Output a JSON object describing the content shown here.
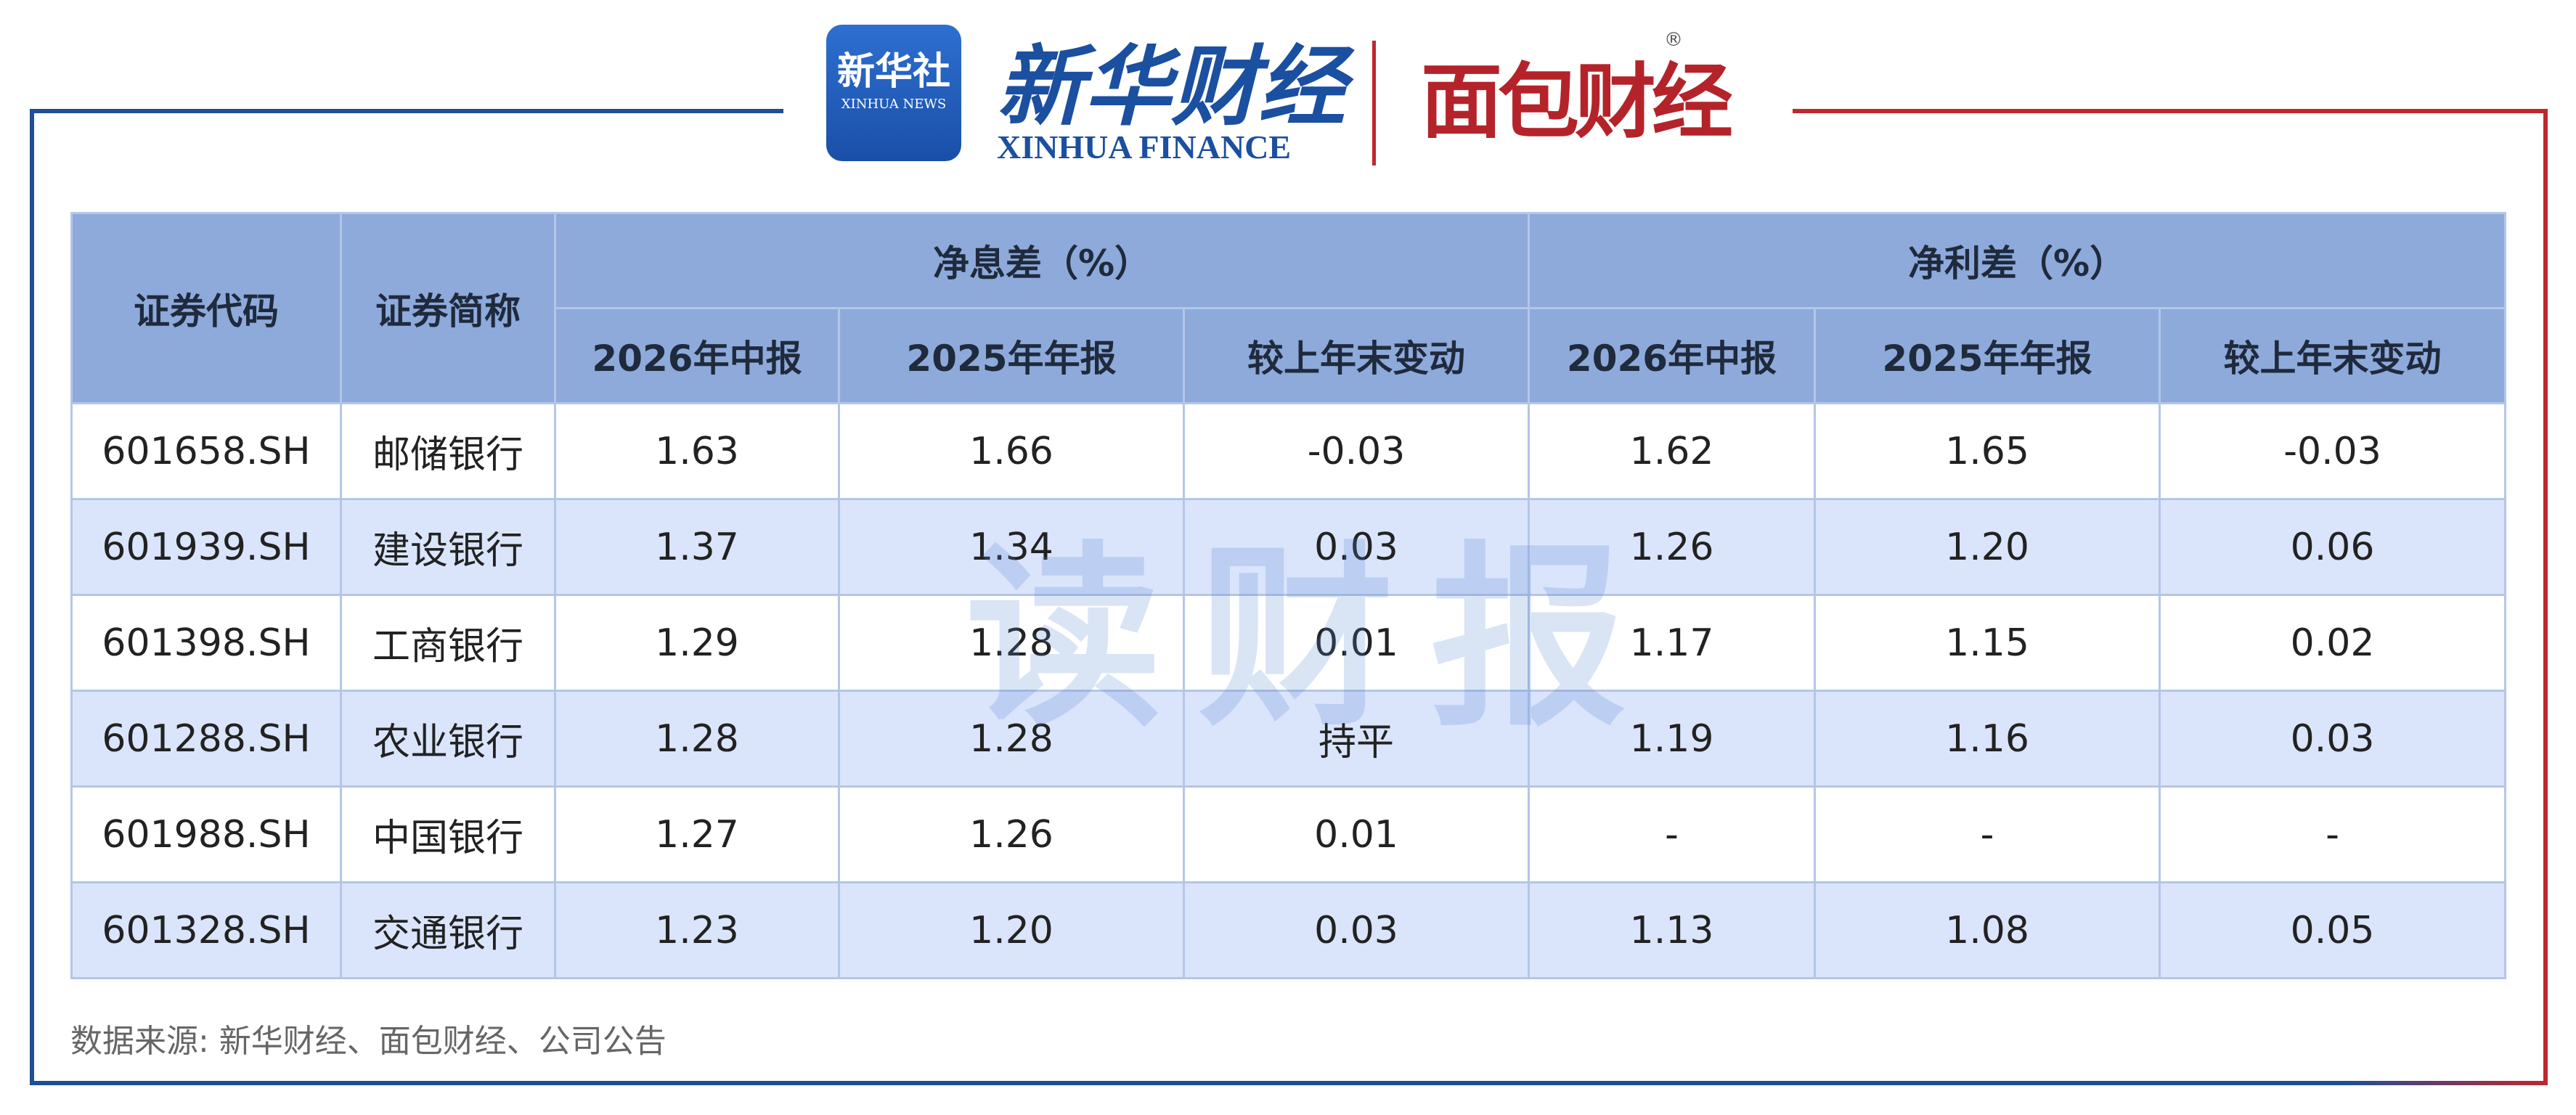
{
  "header": {
    "xinhua_logo": {
      "cn": "新华社",
      "en": "XINHUA NEWS"
    },
    "xinhua_finance": {
      "cn": "新华财经",
      "en": "XINHUA FINANCE"
    },
    "mianbao": {
      "cn": "面包财经",
      "mark": "®"
    }
  },
  "watermark": "读财报",
  "table": {
    "code_header": "证券代码",
    "name_header": "证券简称",
    "groups": [
      {
        "title": "净息差（%）",
        "columns": [
          "2026年中报",
          "2025年年报",
          "较上年末变动"
        ]
      },
      {
        "title": "净利差（%）",
        "columns": [
          "2026年中报",
          "2025年年报",
          "较上年末变动"
        ]
      }
    ],
    "rows": [
      [
        "601658.SH",
        "邮储银行",
        "1.63",
        "1.66",
        "-0.03",
        "1.62",
        "1.65",
        "-0.03"
      ],
      [
        "601939.SH",
        "建设银行",
        "1.37",
        "1.34",
        "0.03",
        "1.26",
        "1.20",
        "0.06"
      ],
      [
        "601398.SH",
        "工商银行",
        "1.29",
        "1.28",
        "0.01",
        "1.17",
        "1.15",
        "0.02"
      ],
      [
        "601288.SH",
        "农业银行",
        "1.28",
        "1.28",
        "持平",
        "1.19",
        "1.16",
        "0.03"
      ],
      [
        "601988.SH",
        "中国银行",
        "1.27",
        "1.26",
        "0.01",
        "-",
        "-",
        "-"
      ],
      [
        "601328.SH",
        "交通银行",
        "1.23",
        "1.20",
        "0.03",
        "1.13",
        "1.08",
        "0.05"
      ]
    ]
  },
  "source": "数据来源: 新华财经、面包财经、公司公告"
}
